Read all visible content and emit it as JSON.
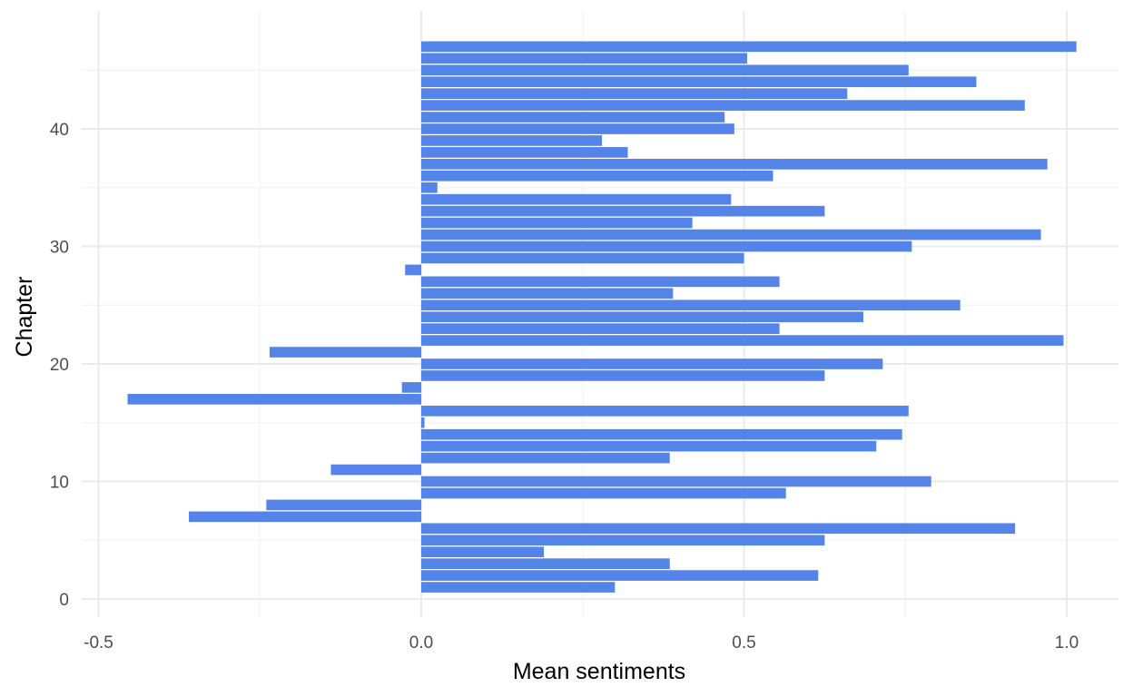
{
  "chart_data": {
    "type": "bar",
    "orientation": "horizontal",
    "xlabel": "Mean sentiments",
    "ylabel": "Chapter",
    "xlim": [
      -0.5,
      1.0
    ],
    "ylim": [
      0,
      47
    ],
    "x_ticks": [
      -0.5,
      0.0,
      0.5,
      1.0
    ],
    "x_tick_labels": [
      "-0.5",
      "0.0",
      "0.5",
      "1.0"
    ],
    "y_ticks": [
      0,
      10,
      20,
      30,
      40
    ],
    "y_tick_labels": [
      "0",
      "10",
      "20",
      "30",
      "40"
    ],
    "grid": true,
    "bar_color": "#5484e8",
    "series": [
      {
        "chapters": [
          1,
          2,
          3,
          4,
          5,
          6,
          7,
          8,
          9,
          10,
          11,
          12,
          13,
          14,
          15,
          16,
          17,
          18,
          19,
          20,
          21,
          22,
          23,
          24,
          25,
          26,
          27,
          28,
          29,
          30,
          31,
          32,
          33,
          34,
          35,
          36,
          37,
          38,
          39,
          40,
          41,
          42,
          43,
          44,
          45,
          46,
          47
        ],
        "values": [
          0.3,
          0.615,
          0.385,
          0.19,
          0.625,
          0.92,
          -0.36,
          -0.24,
          0.565,
          0.79,
          -0.14,
          0.385,
          0.705,
          0.745,
          0.005,
          0.755,
          -0.455,
          -0.03,
          0.625,
          0.715,
          -0.235,
          0.995,
          0.555,
          0.685,
          0.835,
          0.39,
          0.555,
          -0.025,
          0.5,
          0.76,
          0.96,
          0.42,
          0.625,
          0.48,
          0.025,
          0.545,
          0.97,
          0.32,
          0.28,
          0.485,
          0.47,
          0.935,
          0.66,
          0.86,
          0.755,
          0.505,
          1.015
        ]
      }
    ]
  }
}
